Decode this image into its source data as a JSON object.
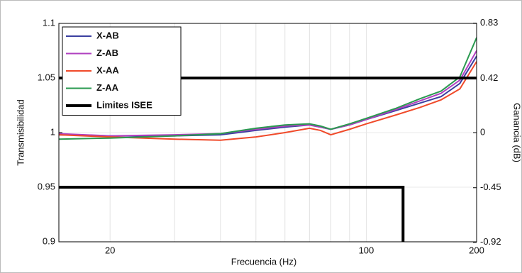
{
  "chart_data": {
    "type": "line",
    "xlabel": "Frecuencia (Hz)",
    "ylabel": "Transmisibilidad",
    "y2label": "Ganancia (dB)",
    "xscale": "log",
    "y2scale": "dB",
    "xlim": [
      14.5,
      200
    ],
    "xticks": [
      20,
      100,
      200
    ],
    "xminorticks": [
      30,
      40,
      50,
      60,
      70,
      80,
      90
    ],
    "ylim": [
      0.9,
      1.1
    ],
    "yticks": [
      0.9,
      0.95,
      1,
      1.05,
      1.1
    ],
    "y2lim": [
      -0.92,
      0.83
    ],
    "y2ticks": [
      -0.92,
      -0.45,
      0,
      0.42,
      0.83
    ],
    "grid": true,
    "legend": "upper left",
    "x": [
      14.5,
      20,
      30,
      40,
      50,
      60,
      70,
      75,
      80,
      90,
      100,
      120,
      140,
      160,
      180,
      200
    ],
    "series": [
      {
        "name": "X-AB",
        "color": "#3b3fa0",
        "values": [
          0.998,
          0.997,
          0.997,
          0.998,
          1.002,
          1.005,
          1.007,
          1.005,
          1.003,
          1.007,
          1.012,
          1.02,
          1.027,
          1.033,
          1.045,
          1.07
        ]
      },
      {
        "name": "Z-AB",
        "color": "#b040c0",
        "values": [
          0.999,
          0.997,
          0.998,
          0.999,
          1.003,
          1.006,
          1.007,
          1.005,
          1.003,
          1.007,
          1.012,
          1.021,
          1.029,
          1.036,
          1.048,
          1.075
        ]
      },
      {
        "name": "X-AA",
        "color": "#f04a2a",
        "values": [
          0.998,
          0.996,
          0.994,
          0.993,
          0.996,
          1.0,
          1.004,
          1.002,
          0.998,
          1.003,
          1.008,
          1.016,
          1.023,
          1.03,
          1.04,
          1.065
        ]
      },
      {
        "name": "Z-AA",
        "color": "#2a9a50",
        "values": [
          0.994,
          0.995,
          0.997,
          0.999,
          1.004,
          1.007,
          1.008,
          1.006,
          1.003,
          1.008,
          1.013,
          1.022,
          1.031,
          1.038,
          1.051,
          1.087
        ]
      },
      {
        "name": "Limites ISEE",
        "color": "#000000",
        "segments": [
          {
            "x": [
              14.5,
              200
            ],
            "values": [
              1.05,
              1.05
            ]
          },
          {
            "x": [
              14.5,
              126,
              126
            ],
            "values": [
              0.95,
              0.95,
              0.9
            ]
          }
        ]
      }
    ]
  }
}
